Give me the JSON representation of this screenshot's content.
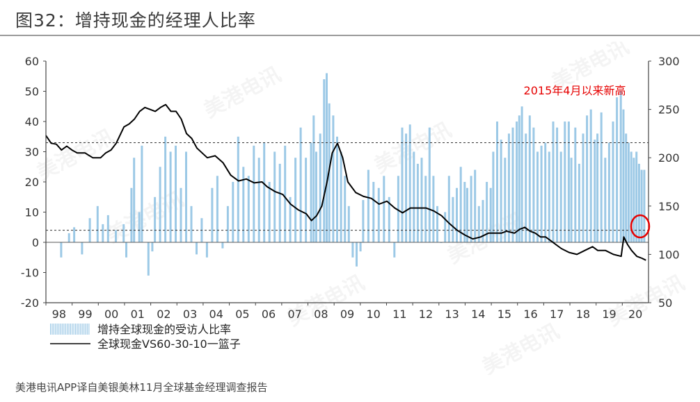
{
  "title": "图32：增持现金的经理人比率",
  "source": "美港电讯APP译自美银美林11月全球基金经理调查报告",
  "watermark": "美港电讯",
  "chart_data": {
    "type": "bar+line",
    "left_axis": {
      "min": -20,
      "max": 60,
      "ticks": [
        60,
        50,
        40,
        30,
        20,
        10,
        0,
        -10,
        -20
      ]
    },
    "right_axis": {
      "min": 50,
      "max": 300,
      "ticks": [
        300,
        250,
        200,
        150,
        100,
        50
      ]
    },
    "x_labels": [
      "98",
      "99",
      "00",
      "01",
      "02",
      "03",
      "04",
      "05",
      "06",
      "07",
      "08",
      "09",
      "10",
      "11",
      "12",
      "13",
      "14",
      "15",
      "16",
      "17",
      "18",
      "19",
      "20"
    ],
    "x_range": [
      1997.8,
      2020.95
    ],
    "reference_lines_left": [
      33,
      4
    ],
    "annotation": {
      "text": "2015年4月以来新高",
      "color": "#e60000"
    },
    "legend": [
      {
        "label": "增持全球现金的受访人比率",
        "kind": "bars",
        "color": "#9cc9e6"
      },
      {
        "label": "全球现金VS60-30-10一篮子",
        "kind": "line",
        "color": "#000000"
      }
    ],
    "series": [
      {
        "name": "增持全球现金的受访人比率",
        "axis": "left",
        "kind": "bar",
        "points": [
          [
            1998.4,
            -5
          ],
          [
            1998.7,
            3
          ],
          [
            1998.9,
            5
          ],
          [
            1999.2,
            -4
          ],
          [
            1999.5,
            8
          ],
          [
            1999.8,
            12
          ],
          [
            2000.0,
            6
          ],
          [
            2000.2,
            9
          ],
          [
            2000.5,
            4
          ],
          [
            2000.8,
            6
          ],
          [
            2000.9,
            -5
          ],
          [
            2001.1,
            18
          ],
          [
            2001.2,
            28
          ],
          [
            2001.4,
            10
          ],
          [
            2001.5,
            32
          ],
          [
            2001.75,
            -11
          ],
          [
            2001.9,
            -3
          ],
          [
            2002.0,
            15
          ],
          [
            2002.2,
            25
          ],
          [
            2002.4,
            35
          ],
          [
            2002.6,
            30
          ],
          [
            2002.8,
            32
          ],
          [
            2003.0,
            18
          ],
          [
            2003.2,
            30
          ],
          [
            2003.4,
            12
          ],
          [
            2003.6,
            -4
          ],
          [
            2003.8,
            8
          ],
          [
            2004.0,
            -5
          ],
          [
            2004.2,
            18
          ],
          [
            2004.4,
            22
          ],
          [
            2004.6,
            -2
          ],
          [
            2004.8,
            12
          ],
          [
            2005.0,
            20
          ],
          [
            2005.2,
            35
          ],
          [
            2005.4,
            25
          ],
          [
            2005.6,
            22
          ],
          [
            2005.8,
            32
          ],
          [
            2006.0,
            28
          ],
          [
            2006.2,
            33
          ],
          [
            2006.4,
            20
          ],
          [
            2006.6,
            30
          ],
          [
            2006.8,
            26
          ],
          [
            2007.0,
            32
          ],
          [
            2007.2,
            15
          ],
          [
            2007.4,
            28
          ],
          [
            2007.6,
            38
          ],
          [
            2007.8,
            28
          ],
          [
            2008.0,
            33
          ],
          [
            2008.1,
            42
          ],
          [
            2008.2,
            30
          ],
          [
            2008.35,
            36
          ],
          [
            2008.5,
            54
          ],
          [
            2008.6,
            56
          ],
          [
            2008.7,
            46
          ],
          [
            2008.85,
            42
          ],
          [
            2009.0,
            35
          ],
          [
            2009.15,
            30
          ],
          [
            2009.3,
            22
          ],
          [
            2009.45,
            12
          ],
          [
            2009.6,
            -5
          ],
          [
            2009.75,
            -8
          ],
          [
            2009.9,
            -3
          ],
          [
            2010.0,
            14
          ],
          [
            2010.2,
            24
          ],
          [
            2010.4,
            20
          ],
          [
            2010.6,
            18
          ],
          [
            2010.8,
            22
          ],
          [
            2011.0,
            15
          ],
          [
            2011.2,
            -5
          ],
          [
            2011.35,
            22
          ],
          [
            2011.5,
            38
          ],
          [
            2011.65,
            36
          ],
          [
            2011.8,
            39
          ],
          [
            2011.95,
            30
          ],
          [
            2012.1,
            26
          ],
          [
            2012.25,
            28
          ],
          [
            2012.4,
            22
          ],
          [
            2012.55,
            38
          ],
          [
            2012.7,
            22
          ],
          [
            2012.85,
            12
          ],
          [
            2013.0,
            0
          ],
          [
            2013.15,
            10
          ],
          [
            2013.3,
            22
          ],
          [
            2013.45,
            15
          ],
          [
            2013.6,
            18
          ],
          [
            2013.75,
            25
          ],
          [
            2013.9,
            20
          ],
          [
            2014.0,
            18
          ],
          [
            2014.15,
            22
          ],
          [
            2014.3,
            24
          ],
          [
            2014.45,
            12
          ],
          [
            2014.6,
            14
          ],
          [
            2014.75,
            20
          ],
          [
            2014.9,
            18
          ],
          [
            2015.0,
            30
          ],
          [
            2015.15,
            40
          ],
          [
            2015.3,
            34
          ],
          [
            2015.45,
            28
          ],
          [
            2015.6,
            36
          ],
          [
            2015.75,
            38
          ],
          [
            2015.9,
            40
          ],
          [
            2016.0,
            42
          ],
          [
            2016.1,
            45
          ],
          [
            2016.25,
            36
          ],
          [
            2016.4,
            42
          ],
          [
            2016.55,
            38
          ],
          [
            2016.7,
            30
          ],
          [
            2016.85,
            32
          ],
          [
            2017.0,
            33
          ],
          [
            2017.15,
            30
          ],
          [
            2017.3,
            40
          ],
          [
            2017.45,
            38
          ],
          [
            2017.6,
            30
          ],
          [
            2017.75,
            40
          ],
          [
            2017.9,
            40
          ],
          [
            2018.0,
            28
          ],
          [
            2018.15,
            38
          ],
          [
            2018.3,
            26
          ],
          [
            2018.45,
            36
          ],
          [
            2018.6,
            42
          ],
          [
            2018.75,
            44
          ],
          [
            2018.9,
            34
          ],
          [
            2019.0,
            36
          ],
          [
            2019.15,
            43
          ],
          [
            2019.3,
            28
          ],
          [
            2019.45,
            33
          ],
          [
            2019.6,
            40
          ],
          [
            2019.75,
            48
          ],
          [
            2019.9,
            50
          ],
          [
            2020.0,
            44
          ],
          [
            2020.1,
            36
          ],
          [
            2020.2,
            33
          ],
          [
            2020.3,
            30
          ],
          [
            2020.4,
            28
          ],
          [
            2020.5,
            30
          ],
          [
            2020.6,
            26
          ],
          [
            2020.7,
            24
          ],
          [
            2020.8,
            24
          ]
        ]
      },
      {
        "name": "全球现金VS60-30-10一篮子",
        "axis": "right",
        "kind": "line",
        "points": [
          [
            1997.8,
            223
          ],
          [
            1998.0,
            215
          ],
          [
            1998.2,
            214
          ],
          [
            1998.4,
            208
          ],
          [
            1998.6,
            212
          ],
          [
            1998.8,
            208
          ],
          [
            1999.0,
            205
          ],
          [
            1999.3,
            205
          ],
          [
            1999.6,
            200
          ],
          [
            1999.9,
            200
          ],
          [
            2000.1,
            205
          ],
          [
            2000.3,
            208
          ],
          [
            2000.5,
            215
          ],
          [
            2000.8,
            232
          ],
          [
            2001.0,
            235
          ],
          [
            2001.2,
            240
          ],
          [
            2001.4,
            248
          ],
          [
            2001.6,
            252
          ],
          [
            2001.8,
            250
          ],
          [
            2002.0,
            248
          ],
          [
            2002.2,
            252
          ],
          [
            2002.4,
            255
          ],
          [
            2002.6,
            248
          ],
          [
            2002.8,
            248
          ],
          [
            2003.0,
            240
          ],
          [
            2003.2,
            225
          ],
          [
            2003.4,
            220
          ],
          [
            2003.6,
            210
          ],
          [
            2003.8,
            205
          ],
          [
            2004.0,
            200
          ],
          [
            2004.3,
            202
          ],
          [
            2004.6,
            195
          ],
          [
            2004.9,
            182
          ],
          [
            2005.2,
            176
          ],
          [
            2005.5,
            178
          ],
          [
            2005.8,
            174
          ],
          [
            2006.1,
            175
          ],
          [
            2006.3,
            170
          ],
          [
            2006.6,
            165
          ],
          [
            2006.9,
            162
          ],
          [
            2007.2,
            152
          ],
          [
            2007.5,
            146
          ],
          [
            2007.8,
            142
          ],
          [
            2008.0,
            135
          ],
          [
            2008.2,
            140
          ],
          [
            2008.4,
            150
          ],
          [
            2008.6,
            175
          ],
          [
            2008.8,
            205
          ],
          [
            2009.0,
            215
          ],
          [
            2009.2,
            200
          ],
          [
            2009.4,
            175
          ],
          [
            2009.7,
            164
          ],
          [
            2010.0,
            160
          ],
          [
            2010.3,
            158
          ],
          [
            2010.6,
            152
          ],
          [
            2010.9,
            155
          ],
          [
            2011.2,
            148
          ],
          [
            2011.5,
            143
          ],
          [
            2011.8,
            148
          ],
          [
            2012.1,
            148
          ],
          [
            2012.4,
            148
          ],
          [
            2012.7,
            145
          ],
          [
            2013.0,
            140
          ],
          [
            2013.3,
            132
          ],
          [
            2013.6,
            125
          ],
          [
            2013.9,
            120
          ],
          [
            2014.2,
            116
          ],
          [
            2014.5,
            118
          ],
          [
            2014.8,
            122
          ],
          [
            2015.0,
            122
          ],
          [
            2015.3,
            122
          ],
          [
            2015.5,
            124
          ],
          [
            2015.8,
            122
          ],
          [
            2016.0,
            126
          ],
          [
            2016.2,
            128
          ],
          [
            2016.4,
            124
          ],
          [
            2016.6,
            122
          ],
          [
            2016.8,
            118
          ],
          [
            2017.0,
            118
          ],
          [
            2017.3,
            112
          ],
          [
            2017.6,
            106
          ],
          [
            2017.9,
            102
          ],
          [
            2018.2,
            100
          ],
          [
            2018.5,
            104
          ],
          [
            2018.8,
            108
          ],
          [
            2019.0,
            104
          ],
          [
            2019.3,
            104
          ],
          [
            2019.6,
            100
          ],
          [
            2019.9,
            98
          ],
          [
            2020.0,
            118
          ],
          [
            2020.15,
            110
          ],
          [
            2020.3,
            104
          ],
          [
            2020.5,
            98
          ],
          [
            2020.7,
            96
          ],
          [
            2020.85,
            94
          ]
        ]
      }
    ]
  }
}
